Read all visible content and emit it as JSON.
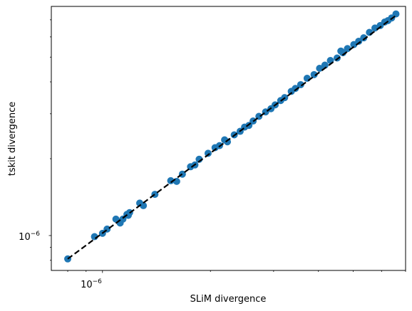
{
  "chart_data": {
    "type": "scatter",
    "title": "",
    "xlabel": "SLiM divergence",
    "ylabel": "tskit divergence",
    "xscale": "log",
    "yscale": "log",
    "xlim": [
      7.2e-07,
      7e-06
    ],
    "ylim": [
      7.3e-07,
      7.9e-06
    ],
    "x_tick_label": {
      "base": "10",
      "exp": "−6",
      "value": 1e-06
    },
    "y_tick_label": {
      "base": "10",
      "exp": "−6",
      "value": 1e-06
    },
    "marker_color": "#1f77b4",
    "line_color": "#000000",
    "line_style": "dashed",
    "grid": false,
    "reference_line": {
      "x": [
        8e-07,
        6.6e-06
      ],
      "y": [
        8.1e-07,
        7.3e-06
      ]
    },
    "points": {
      "x": [
        8e-07,
        9.5e-07,
        1e-06,
        1.03e-06,
        1.09e-06,
        1.12e-06,
        1.14e-06,
        1.17e-06,
        1.19e-06,
        1.18e-06,
        1.27e-06,
        1.3e-06,
        1.4e-06,
        1.55e-06,
        1.61e-06,
        1.67e-06,
        1.76e-06,
        1.81e-06,
        1.86e-06,
        1.97e-06,
        2.06e-06,
        2.12e-06,
        2.19e-06,
        2.23e-06,
        2.33e-06,
        2.42e-06,
        2.49e-06,
        2.56e-06,
        2.63e-06,
        2.73e-06,
        2.85e-06,
        2.95e-06,
        3.03e-06,
        3.14e-06,
        3.22e-06,
        3.36e-06,
        3.45e-06,
        3.57e-06,
        3.72e-06,
        3.89e-06,
        4.03e-06,
        4.17e-06,
        4.32e-06,
        4.51e-06,
        4.62e-06,
        4.68e-06,
        4.82e-06,
        5.02e-06,
        5.18e-06,
        5.35e-06,
        5.55e-06,
        5.75e-06,
        5.95e-06,
        6.12e-06,
        6.25e-06,
        6.4e-06,
        6.58e-06
      ],
      "y": [
        8.1e-07,
        9.9e-07,
        1.02e-06,
        1.06e-06,
        1.16e-06,
        1.12e-06,
        1.16e-06,
        1.21e-06,
        1.23e-06,
        1.2e-06,
        1.34e-06,
        1.31e-06,
        1.45e-06,
        1.64e-06,
        1.63e-06,
        1.74e-06,
        1.86e-06,
        1.89e-06,
        1.99e-06,
        2.1e-06,
        2.21e-06,
        2.25e-06,
        2.37e-06,
        2.33e-06,
        2.48e-06,
        2.56e-06,
        2.66e-06,
        2.7e-06,
        2.81e-06,
        2.93e-06,
        3.05e-06,
        3.14e-06,
        3.25e-06,
        3.38e-06,
        3.47e-06,
        3.67e-06,
        3.77e-06,
        3.9e-06,
        4.13e-06,
        4.27e-06,
        4.52e-06,
        4.65e-06,
        4.85e-06,
        4.96e-06,
        5.28e-06,
        5.2e-06,
        5.4e-06,
        5.6e-06,
        5.77e-06,
        5.95e-06,
        6.25e-06,
        6.5e-06,
        6.65e-06,
        6.86e-06,
        6.95e-06,
        7.12e-06,
        7.38e-06
      ]
    }
  }
}
